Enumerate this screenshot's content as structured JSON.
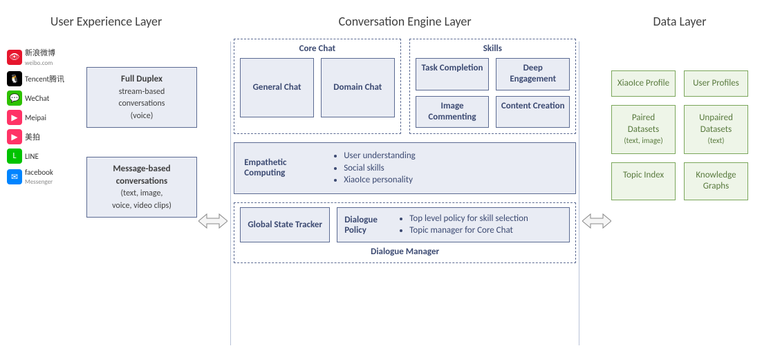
{
  "type": "architecture-diagram",
  "colors": {
    "blue_border": "#5b6a92",
    "blue_fill": "#e9ecf4",
    "blue_text": "#3c4a72",
    "green_border": "#7aa65a",
    "green_fill": "#eef5e8",
    "green_text": "#597a3e",
    "title_text": "#404040",
    "separator": "#b9c2d8",
    "arrow_stroke": "#888888",
    "arrow_fill": "#f5f5f5",
    "background": "#ffffff"
  },
  "typography": {
    "title_fontsize": 18,
    "body_fontsize": 13,
    "small_fontsize": 11
  },
  "uel": {
    "title": "User Experience Layer",
    "logos": [
      {
        "name": "weibo",
        "label_top": "新浪微博",
        "label_bottom": "weibo.com",
        "icon": "👁",
        "badge_bg": "#e6162d"
      },
      {
        "name": "qq",
        "label_top": "Tencent腾讯",
        "label_bottom": "",
        "icon": "🐧",
        "badge_bg": "#000000"
      },
      {
        "name": "wechat",
        "label_top": "WeChat",
        "label_bottom": "",
        "icon": "💬",
        "badge_bg": "#2dc100"
      },
      {
        "name": "meipai",
        "label_top": "Meipai",
        "label_bottom": "",
        "icon": "▶",
        "badge_bg": "#ff3366"
      },
      {
        "name": "meipai-cn",
        "label_top": "美拍",
        "label_bottom": "",
        "icon": "▶",
        "badge_bg": "#ff3366"
      },
      {
        "name": "line",
        "label_top": "LINE",
        "label_bottom": "",
        "icon": "L",
        "badge_bg": "#00c300"
      },
      {
        "name": "messenger",
        "label_top": "facebook",
        "label_bottom": "Messenger",
        "icon": "✉",
        "badge_bg": "#0084ff"
      }
    ],
    "full_duplex": {
      "title": "Full Duplex",
      "line1": "stream-based",
      "line2": "conversations",
      "line3": "(voice)"
    },
    "message_based": {
      "title": "Message-based",
      "line1": "conversations",
      "line2": "(text, image,",
      "line3": "voice, video clips)"
    }
  },
  "cel": {
    "title": "Conversation Engine Layer",
    "core_chat": {
      "title": "Core Chat",
      "items": [
        "General Chat",
        "Domain Chat"
      ]
    },
    "skills": {
      "title": "Skills",
      "items": [
        "Task Completion",
        "Deep Engagement",
        "Image Commenting",
        "Content Creation"
      ]
    },
    "empathetic": {
      "label": "Empathetic Computing",
      "bullets": [
        "User understanding",
        "Social skills",
        "XiaoIce personality"
      ]
    },
    "dialogue_manager": {
      "title": "Dialogue Manager",
      "global_state": "Global State Tracker",
      "policy_label": "Dialogue Policy",
      "policy_bullets": [
        "Top level policy for skill selection",
        "Topic manager for Core Chat"
      ]
    }
  },
  "dl": {
    "title": "Data Layer",
    "boxes": [
      {
        "main": "XiaoIce Profile",
        "sub": ""
      },
      {
        "main": "User Profiles",
        "sub": ""
      },
      {
        "main": "Paired Datasets",
        "sub": "(text, image)"
      },
      {
        "main": "Unpaired Datasets",
        "sub": "(text)"
      },
      {
        "main": "Topic Index",
        "sub": ""
      },
      {
        "main": "Knowledge Graphs",
        "sub": ""
      }
    ]
  }
}
